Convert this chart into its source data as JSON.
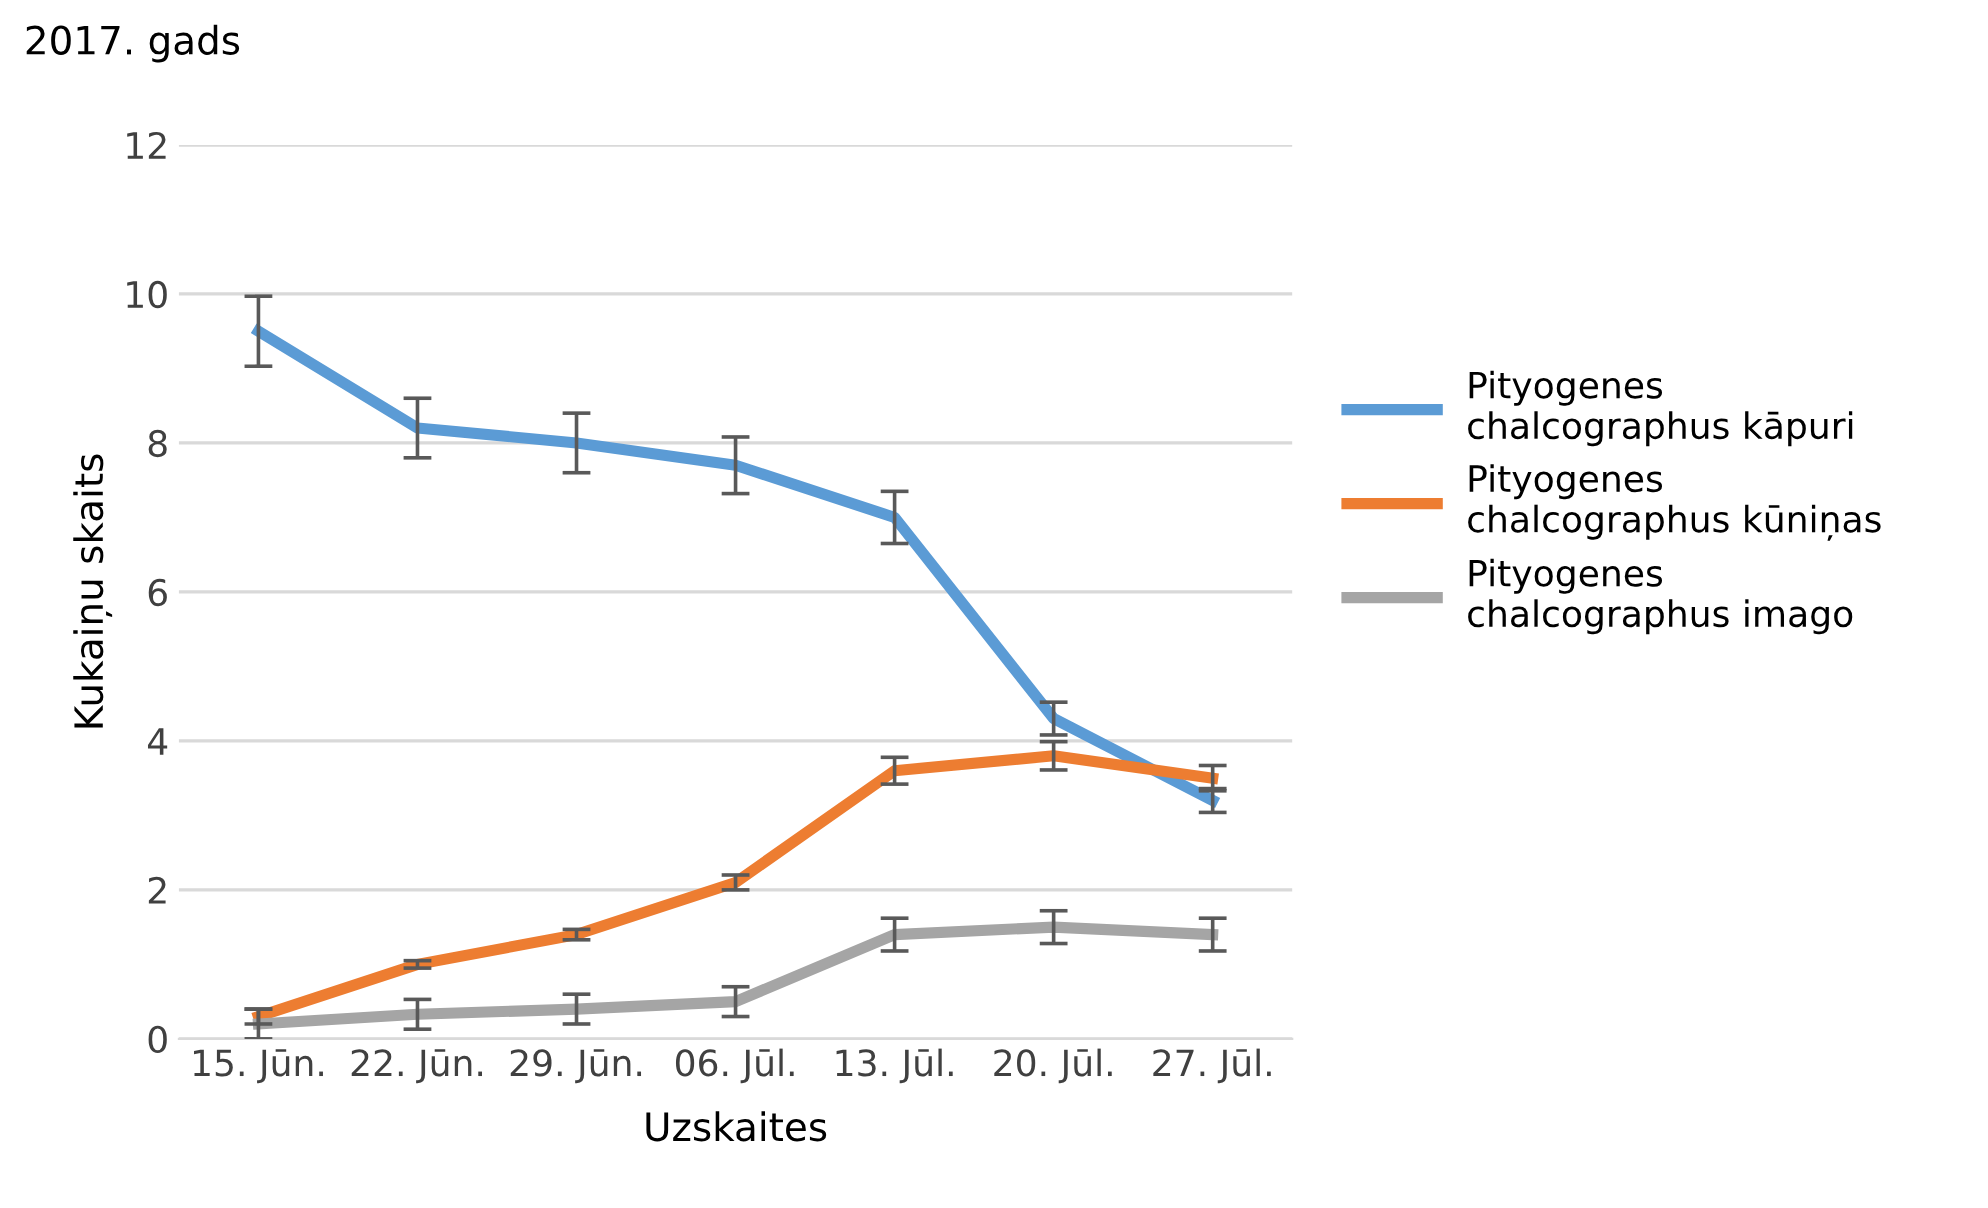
{
  "chart_data": {
    "type": "line",
    "title": "2017. gads",
    "xlabel": "Uzskaites",
    "ylabel": "Kukaiņu skaits",
    "categories": [
      "15. Jūn.",
      "22. Jūn.",
      "29. Jūn.",
      "06. Jūl.",
      "13. Jūl.",
      "20. Jūl.",
      "27. Jūl."
    ],
    "series": [
      {
        "name": "Pityogenes\nchalcographus kāpuri",
        "color": "#5b9bd5",
        "values": [
          9.5,
          8.2,
          8.0,
          7.7,
          7.0,
          4.3,
          3.2
        ],
        "errors": [
          0.47,
          0.4,
          0.4,
          0.38,
          0.35,
          0.22,
          0.16
        ]
      },
      {
        "name": "Pityogenes\nchalcographus kūniņas",
        "color": "#ed7d31",
        "values": [
          0.3,
          1.0,
          1.4,
          2.1,
          3.6,
          3.8,
          3.5
        ],
        "errors": [
          0.1,
          0.05,
          0.07,
          0.1,
          0.18,
          0.19,
          0.17
        ]
      },
      {
        "name": "Pityogenes\nchalcographus imago",
        "color": "#a5a5a5",
        "values": [
          0.2,
          0.33,
          0.4,
          0.5,
          1.4,
          1.5,
          1.4
        ],
        "errors": [
          0.2,
          0.2,
          0.2,
          0.2,
          0.22,
          0.22,
          0.22
        ]
      }
    ],
    "ylim": [
      0,
      12
    ],
    "yticks": [
      0,
      2,
      4,
      6,
      8,
      10,
      12
    ],
    "grid": "y",
    "legend": "right",
    "marker": "none",
    "line_style": "solid"
  }
}
